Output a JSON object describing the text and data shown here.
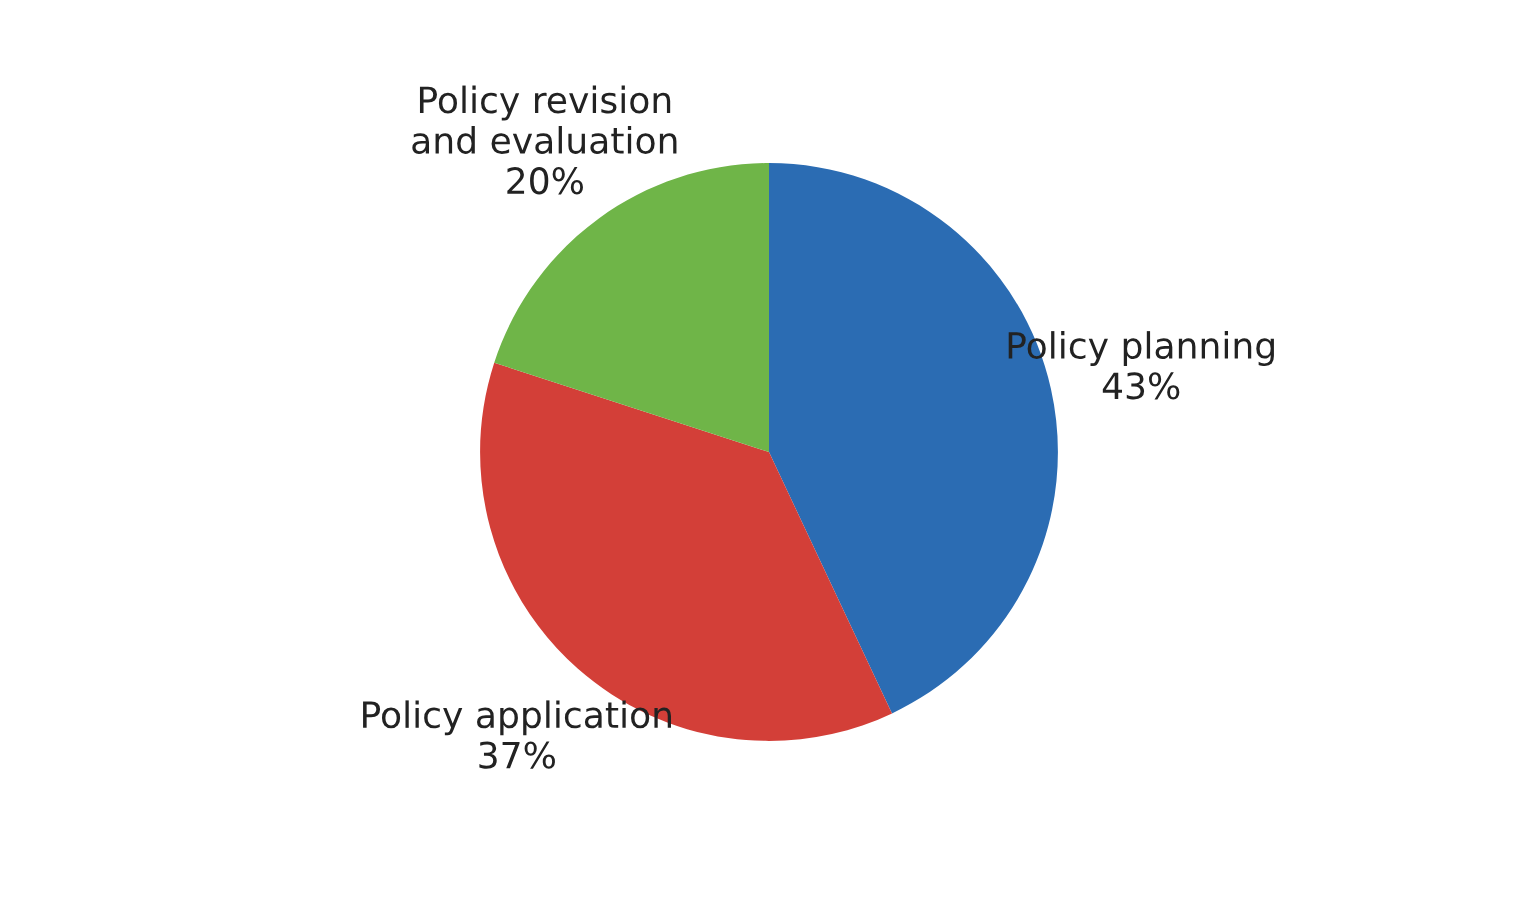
{
  "chart_data": {
    "type": "pie",
    "categories": [
      "Policy planning",
      "Policy application",
      "Policy revision\nand evaluation"
    ],
    "values": [
      43,
      37,
      20
    ],
    "colors": [
      "#2b6cb3",
      "#d33f38",
      "#6fb548"
    ],
    "value_labels": [
      "43%",
      "37%",
      "20%"
    ],
    "legend": false
  }
}
